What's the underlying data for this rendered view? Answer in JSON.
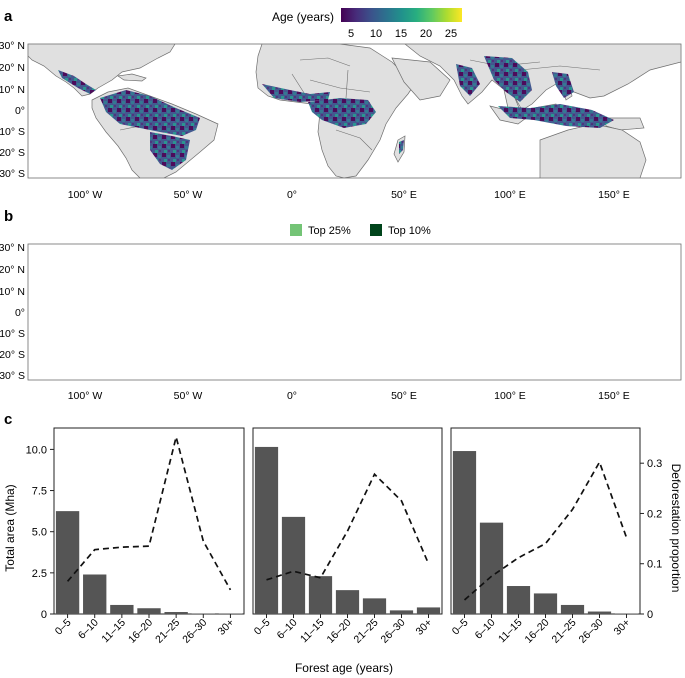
{
  "panels": {
    "a": {
      "label": "a",
      "legend_title": "Age (years)",
      "colorbar_ticks": [
        "5",
        "10",
        "15",
        "20",
        "25"
      ],
      "colorbar_colors": [
        "#440154",
        "#472c7a",
        "#3b528b",
        "#2c728e",
        "#21918c",
        "#28ae80",
        "#5ec962",
        "#addc30",
        "#fde725"
      ],
      "lat_ticks": [
        "30° N",
        "20° N",
        "10° N",
        "0°",
        "10° S",
        "20° S",
        "30° S"
      ],
      "lon_ticks": [
        "100° W",
        "50° W",
        "0°",
        "50° E",
        "100° E",
        "150° E"
      ]
    },
    "b": {
      "label": "b",
      "legend": [
        {
          "name": "Top 25%",
          "color": "#74c476"
        },
        {
          "name": "Top 10%",
          "color": "#00441b"
        }
      ],
      "lat_ticks": [
        "30° N",
        "20° N",
        "10° N",
        "0°",
        "10° S",
        "20° S",
        "30° S"
      ],
      "lon_ticks": [
        "100° W",
        "50° W",
        "0°",
        "50° E",
        "100° E",
        "150° E"
      ]
    },
    "c": {
      "label": "c"
    }
  },
  "colors": {
    "land": "#e0e0e0",
    "border": "#6e6e6e",
    "bar": "#555555"
  },
  "chart_data": {
    "type": "bar",
    "subtype": "bar with dashed line on secondary axis, three facets",
    "xlabel": "Forest age (years)",
    "ylabel": "Total area (Mha)",
    "y2label": "Deforestation proportion",
    "categories": [
      "0–5",
      "6–10",
      "11–15",
      "16–20",
      "21–25",
      "26–30",
      "30+"
    ],
    "ylim": [
      0,
      11.3
    ],
    "yticks": [
      "0",
      "2.5",
      "5.0",
      "7.5",
      "10.0"
    ],
    "y2lim": [
      0,
      0.37
    ],
    "y2ticks": [
      "0",
      "0.1",
      "0.2",
      "0.3"
    ],
    "facets": [
      {
        "area": [
          6.25,
          2.4,
          0.55,
          0.35,
          0.12,
          0.03,
          0.03
        ],
        "deforestation": [
          0.065,
          0.128,
          0.133,
          0.135,
          0.352,
          0.145,
          0.048
        ]
      },
      {
        "area": [
          10.15,
          5.9,
          2.3,
          1.45,
          0.95,
          0.22,
          0.4
        ],
        "deforestation": [
          0.068,
          0.085,
          0.072,
          0.165,
          0.278,
          0.225,
          0.1
        ]
      },
      {
        "area": [
          9.9,
          5.55,
          1.7,
          1.25,
          0.55,
          0.15,
          0.03
        ],
        "deforestation": [
          0.028,
          0.075,
          0.112,
          0.14,
          0.208,
          0.302,
          0.152
        ]
      }
    ]
  }
}
